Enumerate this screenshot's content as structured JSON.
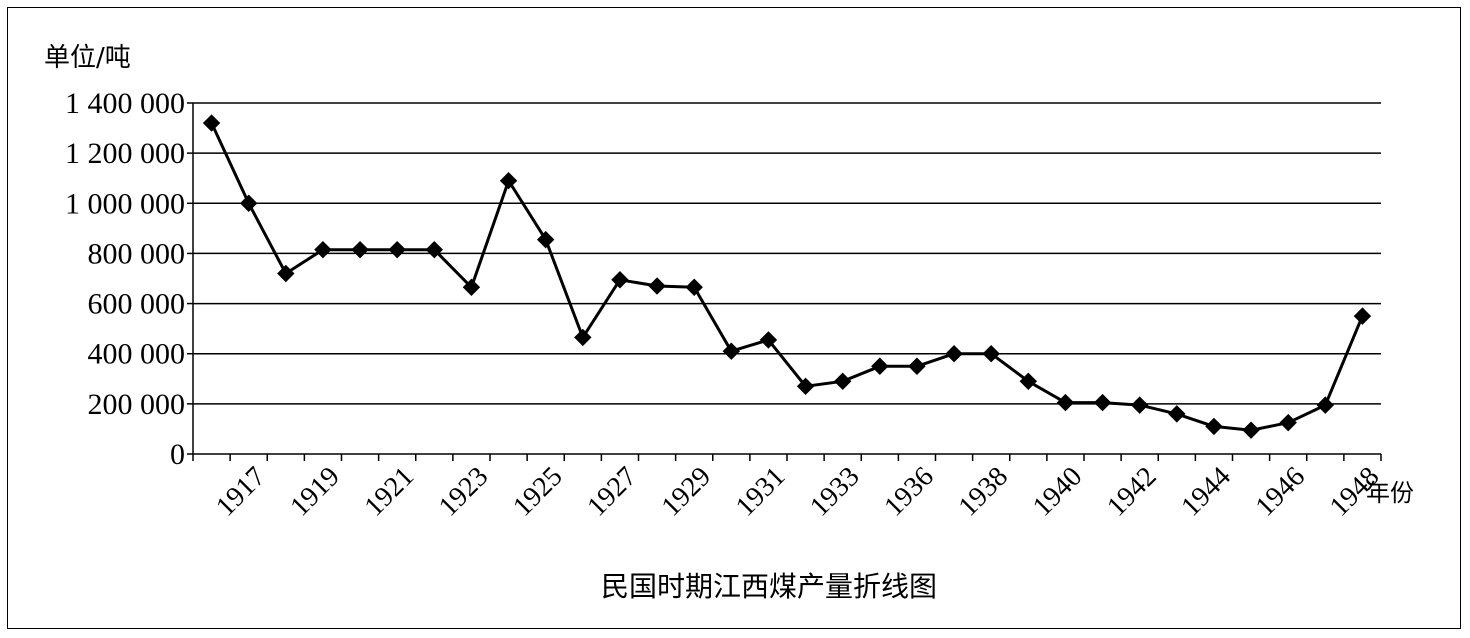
{
  "chart_data": {
    "type": "line",
    "title": "民国时期江西煤产量折线图",
    "ylabel": "单位/吨",
    "xlabel": "年份",
    "ylim": [
      0,
      1400000
    ],
    "yticks": [
      0,
      200000,
      400000,
      600000,
      800000,
      1000000,
      1200000,
      1400000
    ],
    "ytick_labels": [
      "0",
      "200 000",
      "400 000",
      "600 000",
      "800 000",
      "1 000 000",
      "1 200 000",
      "1 400 000"
    ],
    "xtick_labels": [
      "1917",
      "1919",
      "1921",
      "1923",
      "1925",
      "1927",
      "1929",
      "1931",
      "1933",
      "1936",
      "1938",
      "1940",
      "1942",
      "1944",
      "1946",
      "1948"
    ],
    "grid": true,
    "legend": "none",
    "marker": "diamond",
    "line_color": "#000000",
    "values": [
      1320000,
      1000000,
      720000,
      815000,
      815000,
      815000,
      815000,
      665000,
      1090000,
      855000,
      465000,
      695000,
      670000,
      665000,
      410000,
      455000,
      270000,
      290000,
      350000,
      350000,
      400000,
      400000,
      290000,
      205000,
      205000,
      195000,
      160000,
      110000,
      95000,
      125000,
      195000,
      550000
    ]
  }
}
